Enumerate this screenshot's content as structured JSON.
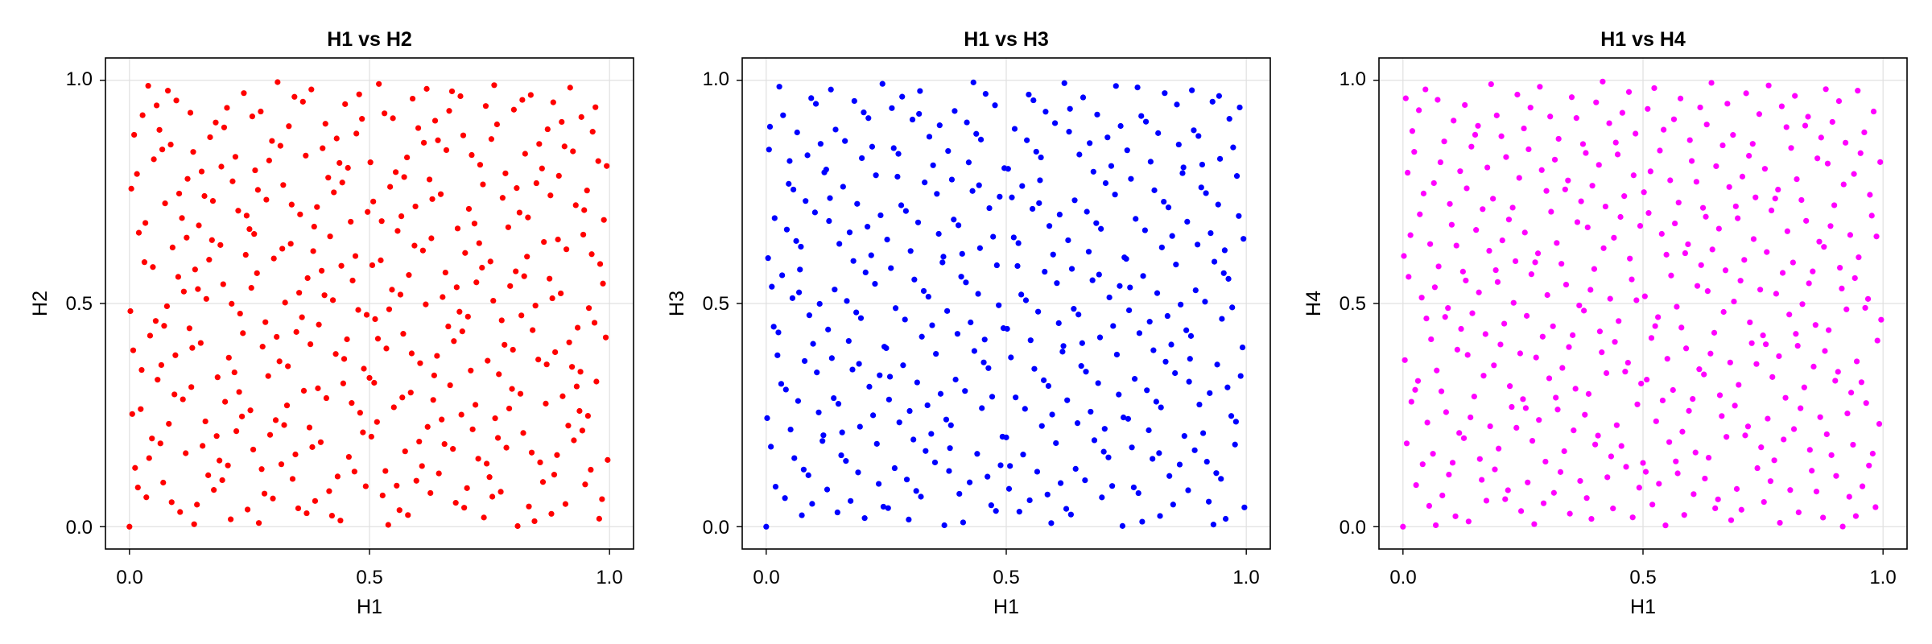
{
  "figure": {
    "background": "#ffffff"
  },
  "chart_data": [
    {
      "type": "scatter",
      "title": "H1 vs H2",
      "xlabel": "H1",
      "ylabel": "H2",
      "xlim": [
        -0.05,
        1.05
      ],
      "ylim": [
        -0.05,
        1.05
      ],
      "xticks": [
        0.0,
        0.5,
        1.0
      ],
      "yticks": [
        0.0,
        0.5,
        1.0
      ],
      "xtick_labels": [
        "0.0",
        "0.5",
        "1.0"
      ],
      "ytick_labels": [
        "0.0",
        "0.5",
        "1.0"
      ],
      "grid": true,
      "legend": "none",
      "color": "#ff0000",
      "series": [
        {
          "points": "Halton sequence, bases 2 and 3, first 400 points",
          "count": 400,
          "x_base": 2,
          "y_base": 3
        }
      ]
    },
    {
      "type": "scatter",
      "title": "H1 vs H3",
      "xlabel": "H1",
      "ylabel": "H3",
      "xlim": [
        -0.05,
        1.05
      ],
      "ylim": [
        -0.05,
        1.05
      ],
      "xticks": [
        0.0,
        0.5,
        1.0
      ],
      "yticks": [
        0.0,
        0.5,
        1.0
      ],
      "xtick_labels": [
        "0.0",
        "0.5",
        "1.0"
      ],
      "ytick_labels": [
        "0.0",
        "0.5",
        "1.0"
      ],
      "grid": true,
      "legend": "none",
      "color": "#0000ff",
      "series": [
        {
          "points": "Halton sequence, bases 2 and 5, first 400 points",
          "count": 400,
          "x_base": 2,
          "y_base": 5
        }
      ]
    },
    {
      "type": "scatter",
      "title": "H1 vs H4",
      "xlabel": "H1",
      "ylabel": "H4",
      "xlim": [
        -0.05,
        1.05
      ],
      "ylim": [
        -0.05,
        1.05
      ],
      "xticks": [
        0.0,
        0.5,
        1.0
      ],
      "yticks": [
        0.0,
        0.5,
        1.0
      ],
      "xtick_labels": [
        "0.0",
        "0.5",
        "1.0"
      ],
      "ytick_labels": [
        "0.0",
        "0.5",
        "1.0"
      ],
      "grid": true,
      "legend": "none",
      "color": "#ff00ff",
      "series": [
        {
          "points": "Halton sequence, bases 2 and 7, first 400 points",
          "count": 400,
          "x_base": 2,
          "y_base": 7
        }
      ]
    }
  ]
}
